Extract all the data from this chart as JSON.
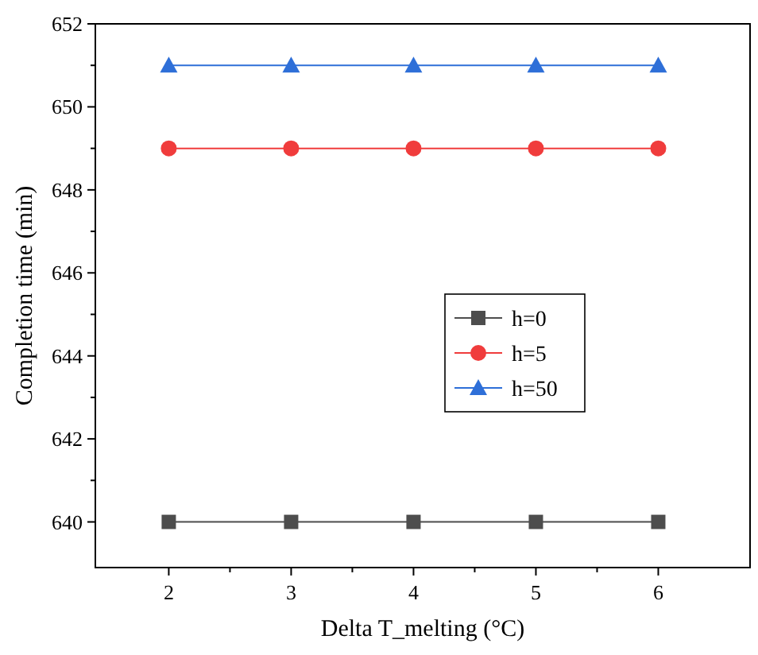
{
  "chart_data": {
    "type": "line",
    "xlabel": "Delta T_melting (°C)",
    "ylabel": "Completion time (min)",
    "x": [
      2,
      3,
      4,
      5,
      6
    ],
    "series": [
      {
        "name": "h=0",
        "color": "#4d4d4d",
        "marker": "square",
        "values": [
          640,
          640,
          640,
          640,
          640
        ]
      },
      {
        "name": "h=5",
        "color": "#f03c3c",
        "marker": "circle",
        "values": [
          649,
          649,
          649,
          649,
          649
        ]
      },
      {
        "name": "h=50",
        "color": "#2e6fd8",
        "marker": "triangle",
        "values": [
          651,
          651,
          651,
          651,
          651
        ]
      }
    ],
    "xlim": [
      1.4,
      6.75
    ],
    "xticks": [
      2,
      {
        "value": 2.5,
        "label": null
      },
      3,
      {
        "value": 3.5,
        "label": null
      },
      4,
      {
        "value": 4.5,
        "label": null
      },
      5,
      {
        "value": 5.5,
        "label": null
      },
      6
    ],
    "ylim": [
      638.9,
      652
    ],
    "yticks": [
      640,
      {
        "value": 641,
        "label": null
      },
      642,
      {
        "value": 643,
        "label": null
      },
      644,
      {
        "value": 645,
        "label": null
      },
      646,
      {
        "value": 647,
        "label": null
      },
      648,
      {
        "value": 649,
        "label": null
      },
      650,
      {
        "value": 651,
        "label": null
      },
      652
    ],
    "grid": false,
    "legend": "right",
    "line_style": "solid"
  }
}
